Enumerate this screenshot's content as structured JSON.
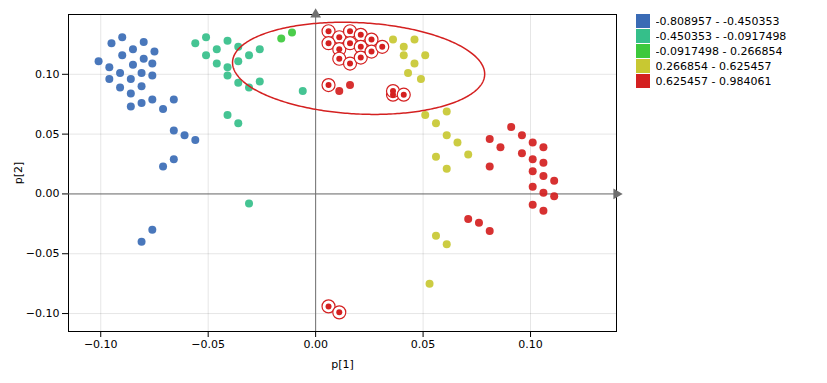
{
  "chart_data": {
    "type": "scatter",
    "title": "",
    "xlabel": "p[1]",
    "ylabel": "p[2]",
    "xlim": [
      -0.115,
      0.14
    ],
    "ylim": [
      -0.115,
      0.15
    ],
    "xticks": [
      {
        "value": -0.1,
        "label": "−0.10"
      },
      {
        "value": -0.05,
        "label": "−0.05"
      },
      {
        "value": 0,
        "label": "0.00"
      },
      {
        "value": 0.05,
        "label": "0.05"
      },
      {
        "value": 0.1,
        "label": "0.10"
      }
    ],
    "yticks": [
      {
        "value": -0.1,
        "label": "−0.10"
      },
      {
        "value": -0.05,
        "label": "−0.05"
      },
      {
        "value": 0,
        "label": "0.00"
      },
      {
        "value": 0.05,
        "label": "0.05"
      },
      {
        "value": 0.1,
        "label": "0.10"
      }
    ],
    "grid": true,
    "legend": "right",
    "hlines": [
      0
    ],
    "vlines": [
      0
    ],
    "axis_color": "#707070",
    "series": [
      {
        "name": "-0.808957 - -0.450353",
        "color": "#3A6BB5",
        "values": [
          [
            -0.095,
            0.126
          ],
          [
            -0.09,
            0.131
          ],
          [
            -0.085,
            0.121
          ],
          [
            -0.08,
            0.127
          ],
          [
            -0.09,
            0.116
          ],
          [
            -0.085,
            0.108
          ],
          [
            -0.08,
            0.113
          ],
          [
            -0.075,
            0.119
          ],
          [
            -0.076,
            0.109
          ],
          [
            -0.081,
            0.101
          ],
          [
            -0.086,
            0.096
          ],
          [
            -0.091,
            0.101
          ],
          [
            -0.096,
            0.106
          ],
          [
            -0.101,
            0.111
          ],
          [
            -0.096,
            0.096
          ],
          [
            -0.091,
            0.089
          ],
          [
            -0.086,
            0.084
          ],
          [
            -0.081,
            0.09
          ],
          [
            -0.076,
            0.099
          ],
          [
            -0.076,
            0.079
          ],
          [
            -0.081,
            0.076
          ],
          [
            -0.086,
            0.073
          ],
          [
            -0.071,
            0.071
          ],
          [
            -0.066,
            0.079
          ],
          [
            -0.061,
            0.049
          ],
          [
            -0.066,
            0.053
          ],
          [
            -0.056,
            0.045
          ],
          [
            -0.066,
            0.029
          ],
          [
            -0.071,
            0.023
          ],
          [
            -0.081,
            -0.04
          ],
          [
            -0.076,
            -0.03
          ]
        ]
      },
      {
        "name": "-0.450353 - -0.0917498",
        "color": "#35BF8A",
        "values": [
          [
            -0.056,
            0.126
          ],
          [
            -0.051,
            0.131
          ],
          [
            -0.046,
            0.121
          ],
          [
            -0.041,
            0.128
          ],
          [
            -0.036,
            0.123
          ],
          [
            -0.051,
            0.116
          ],
          [
            -0.046,
            0.109
          ],
          [
            -0.041,
            0.106
          ],
          [
            -0.036,
            0.111
          ],
          [
            -0.031,
            0.116
          ],
          [
            -0.026,
            0.121
          ],
          [
            -0.041,
            0.099
          ],
          [
            -0.036,
            0.093
          ],
          [
            -0.031,
            0.089
          ],
          [
            -0.026,
            0.094
          ],
          [
            -0.041,
            0.066
          ],
          [
            -0.036,
            0.059
          ],
          [
            -0.031,
            -0.008
          ],
          [
            -0.006,
            0.086
          ]
        ]
      },
      {
        "name": "-0.0917498 - 0.266854",
        "color": "#3CC93C",
        "values": [
          [
            -0.016,
            0.13
          ],
          [
            -0.011,
            0.135
          ]
        ]
      },
      {
        "name": "0.266854 - 0.625457",
        "color": "#C8C832",
        "values": [
          [
            0.036,
            0.129
          ],
          [
            0.041,
            0.123
          ],
          [
            0.046,
            0.129
          ],
          [
            0.041,
            0.116
          ],
          [
            0.046,
            0.109
          ],
          [
            0.051,
            0.116
          ],
          [
            0.043,
            0.101
          ],
          [
            0.049,
            0.096
          ],
          [
            0.051,
            0.066
          ],
          [
            0.056,
            0.059
          ],
          [
            0.061,
            0.069
          ],
          [
            0.061,
            0.049
          ],
          [
            0.066,
            0.043
          ],
          [
            0.071,
            0.033
          ],
          [
            0.056,
            0.031
          ],
          [
            0.061,
            0.021
          ],
          [
            0.056,
            -0.035
          ],
          [
            0.061,
            -0.042
          ],
          [
            0.053,
            -0.075
          ]
        ]
      },
      {
        "name": "0.625457 - 0.984061",
        "color": "#D42020",
        "values": [
          [
            0.006,
            0.136
          ],
          [
            0.011,
            0.131
          ],
          [
            0.016,
            0.136
          ],
          [
            0.021,
            0.133
          ],
          [
            0.006,
            0.126
          ],
          [
            0.011,
            0.121
          ],
          [
            0.016,
            0.126
          ],
          [
            0.021,
            0.123
          ],
          [
            0.026,
            0.129
          ],
          [
            0.011,
            0.113
          ],
          [
            0.016,
            0.109
          ],
          [
            0.021,
            0.114
          ],
          [
            0.026,
            0.119
          ],
          [
            0.031,
            0.123
          ],
          [
            0.006,
            0.091
          ],
          [
            0.011,
            0.086
          ],
          [
            0.016,
            0.091
          ],
          [
            0.036,
            0.086
          ],
          [
            0.041,
            0.083
          ],
          [
            0.036,
            0.083
          ],
          [
            0.006,
            -0.094
          ],
          [
            0.011,
            -0.099
          ],
          [
            0.091,
            0.056
          ],
          [
            0.096,
            0.049
          ],
          [
            0.101,
            0.043
          ],
          [
            0.106,
            0.039
          ],
          [
            0.096,
            0.034
          ],
          [
            0.101,
            0.029
          ],
          [
            0.106,
            0.026
          ],
          [
            0.101,
            0.019
          ],
          [
            0.106,
            0.015
          ],
          [
            0.111,
            0.011
          ],
          [
            0.101,
            0.006
          ],
          [
            0.106,
            0.001
          ],
          [
            0.111,
            -0.002
          ],
          [
            0.101,
            -0.009
          ],
          [
            0.106,
            -0.014
          ],
          [
            0.081,
            0.023
          ],
          [
            0.086,
            0.039
          ],
          [
            0.081,
            0.046
          ],
          [
            0.076,
            -0.024
          ],
          [
            0.081,
            -0.031
          ],
          [
            0.071,
            -0.021
          ]
        ],
        "ringed_points": [
          [
            0.006,
            0.136
          ],
          [
            0.011,
            0.131
          ],
          [
            0.016,
            0.136
          ],
          [
            0.021,
            0.133
          ],
          [
            0.006,
            0.126
          ],
          [
            0.011,
            0.121
          ],
          [
            0.016,
            0.126
          ],
          [
            0.021,
            0.123
          ],
          [
            0.026,
            0.129
          ],
          [
            0.011,
            0.113
          ],
          [
            0.016,
            0.109
          ],
          [
            0.021,
            0.114
          ],
          [
            0.026,
            0.119
          ],
          [
            0.031,
            0.123
          ],
          [
            0.006,
            0.091
          ],
          [
            0.006,
            -0.094
          ],
          [
            0.011,
            -0.099
          ],
          [
            0.036,
            0.083
          ],
          [
            0.036,
            0.086
          ],
          [
            0.041,
            0.083
          ]
        ]
      }
    ],
    "ellipse": {
      "x_center": 0.02,
      "y_center": 0.105,
      "width": 0.118,
      "height": 0.076,
      "angle": -8,
      "color": "#D42020"
    }
  }
}
